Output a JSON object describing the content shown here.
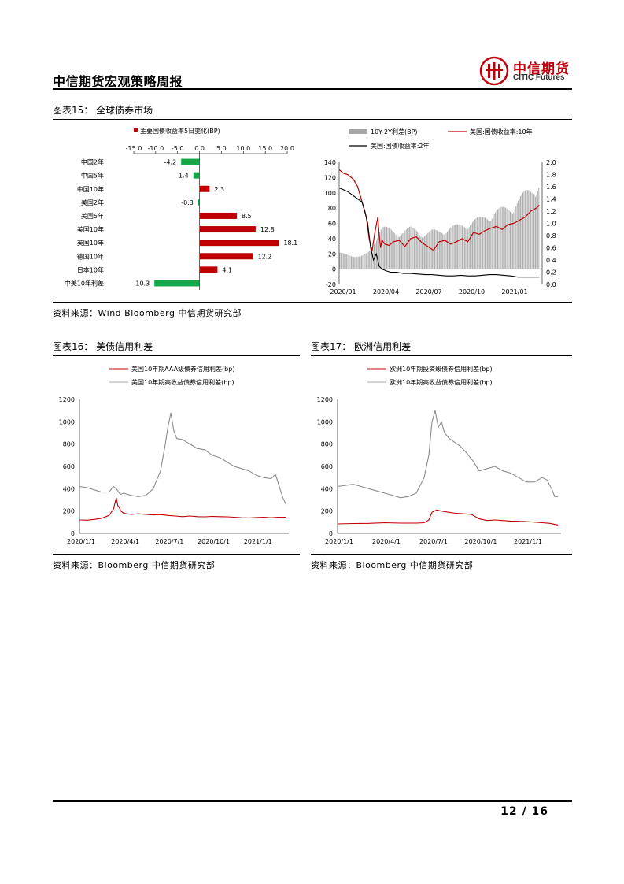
{
  "header": {
    "title": "中信期货宏观策略周报",
    "logo_cn": "中信期货",
    "logo_en": "CITIC Futures"
  },
  "fig15": {
    "caption": "图表15： 全球债券市场",
    "source": "资料来源：Wind Bloomberg 中信期货研究部"
  },
  "fig16": {
    "caption": "图表16： 美债信用利差",
    "source": "资料来源：Bloomberg 中信期货研究部"
  },
  "fig17": {
    "caption": "图表17： 欧洲信用利差",
    "source": "资料来源：Bloomberg 中信期货研究部"
  },
  "footer": {
    "page": "12 / 16"
  },
  "colors": {
    "red": "#c00000",
    "green": "#18a64a",
    "grey": "#a6a6a6",
    "black": "#000000"
  },
  "chart_data": [
    {
      "id": "bar",
      "type": "bar",
      "orientation": "horizontal",
      "legend": "主要国债收益率5日变化(BP)",
      "categories": [
        "中国2年",
        "中国5年",
        "中国10年",
        "美国2年",
        "美国5年",
        "美国10年",
        "英国10年",
        "德国10年",
        "日本10年",
        "中美10年利差"
      ],
      "values": [
        -4.2,
        -1.4,
        2.3,
        -0.3,
        8.5,
        12.8,
        18.1,
        12.2,
        4.1,
        -10.3
      ],
      "value_labels": [
        "-4.2",
        "-1.4",
        "2.3",
        "-0.3",
        "8.5",
        "12.8",
        "18.1",
        "12.2",
        "4.1",
        "-10.3"
      ],
      "xlim": [
        -15,
        20
      ],
      "xticks": [
        "-15.0",
        "-10.0",
        "-5.0",
        "0.0",
        "5.0",
        "10.0",
        "15.0",
        "20.0"
      ],
      "xtick_values": [
        -15,
        -10,
        -5,
        0,
        5,
        10,
        15,
        20
      ]
    },
    {
      "id": "yields",
      "type": "line",
      "legend": [
        "10Y-2Y利差(BP)",
        "美国:国债收益率:10年",
        "美国:国债收益率:2年"
      ],
      "xticks": [
        "2020/01",
        "2020/04",
        "2020/07",
        "2020/10",
        "2021/01"
      ],
      "xlim": [
        0,
        14.2
      ],
      "ylim_left": [
        -20,
        140
      ],
      "yticks_left": [
        "140",
        "120",
        "100",
        "80",
        "60",
        "40",
        "20",
        "0",
        "-20"
      ],
      "ytick_values_left": [
        140,
        120,
        100,
        80,
        60,
        40,
        20,
        0,
        -20
      ],
      "ylim_right": [
        0,
        2.0
      ],
      "yticks_right": [
        "2.0",
        "1.8",
        "1.6",
        "1.4",
        "1.2",
        "1.0",
        "0.8",
        "0.6",
        "0.4",
        "0.2",
        "0.0"
      ],
      "ytick_values_right": [
        2.0,
        1.8,
        1.6,
        1.4,
        1.2,
        1.0,
        0.8,
        0.6,
        0.4,
        0.2,
        0.0
      ],
      "series": [
        {
          "name": "10Y-2Y利差(BP)",
          "axis": "left",
          "kind": "column",
          "x": [
            0,
            0.5,
            1,
            1.5,
            2,
            2.3,
            2.6,
            3,
            3.5,
            4,
            4.5,
            5,
            5.5,
            6,
            6.5,
            7,
            7.5,
            8,
            8.5,
            9,
            9.5,
            10,
            10.5,
            11,
            11.5,
            12,
            12.5,
            13,
            13.5,
            14
          ],
          "y": [
            22,
            20,
            19,
            17,
            22,
            30,
            45,
            58,
            54,
            50,
            52,
            56,
            53,
            48,
            52,
            52,
            55,
            58,
            60,
            63,
            67,
            70,
            75,
            80,
            82,
            85,
            95,
            103,
            110,
            120
          ]
        },
        {
          "name": "美国:国债收益率:10年",
          "axis": "right",
          "kind": "line",
          "x": [
            0,
            0.3,
            0.6,
            1,
            1.3,
            1.6,
            1.9,
            2.1,
            2.3,
            2.5,
            2.7,
            2.8,
            2.9,
            3.0,
            3.2,
            3.5,
            3.8,
            4.2,
            4.6,
            5,
            5.4,
            5.8,
            6.2,
            6.6,
            7,
            7.4,
            7.8,
            8.2,
            8.6,
            9,
            9.4,
            9.8,
            10.2,
            10.6,
            11,
            11.4,
            11.8,
            12.2,
            12.6,
            13,
            13.4,
            13.8,
            14
          ],
          "y": [
            1.88,
            1.82,
            1.8,
            1.72,
            1.6,
            1.35,
            1.1,
            0.75,
            0.55,
            0.85,
            1.1,
            0.8,
            0.6,
            0.72,
            0.66,
            0.64,
            0.7,
            0.72,
            0.62,
            0.75,
            0.78,
            0.68,
            0.62,
            0.56,
            0.7,
            0.72,
            0.66,
            0.7,
            0.75,
            0.7,
            0.85,
            0.82,
            0.88,
            0.92,
            0.95,
            0.9,
            0.98,
            1.0,
            1.05,
            1.1,
            1.2,
            1.25,
            1.3
          ]
        },
        {
          "name": "美国:国债收益率:2年",
          "axis": "right",
          "kind": "line",
          "x": [
            0,
            0.3,
            0.6,
            1,
            1.3,
            1.6,
            1.8,
            2.0,
            2.2,
            2.4,
            2.6,
            2.8,
            3.0,
            3.3,
            3.6,
            4,
            4.5,
            5,
            5.5,
            6,
            6.5,
            7,
            7.5,
            8,
            8.5,
            9,
            9.5,
            10,
            10.5,
            11,
            11.5,
            12,
            12.5,
            13,
            13.5,
            14
          ],
          "y": [
            1.58,
            1.55,
            1.52,
            1.45,
            1.4,
            1.35,
            1.2,
            1.0,
            0.6,
            0.4,
            0.5,
            0.3,
            0.25,
            0.22,
            0.2,
            0.2,
            0.18,
            0.18,
            0.17,
            0.16,
            0.16,
            0.15,
            0.14,
            0.14,
            0.15,
            0.14,
            0.14,
            0.15,
            0.16,
            0.16,
            0.15,
            0.14,
            0.12,
            0.12,
            0.12,
            0.12
          ]
        }
      ]
    },
    {
      "id": "us_spread",
      "type": "line",
      "legend": [
        "美国10年期AAA级债券信用利差(bp)",
        "美国10年期高收益债券信用利差(bp)"
      ],
      "xticks": [
        "2020/1/1",
        "2020/4/1",
        "2020/7/1",
        "2020/10/1",
        "2021/1/1"
      ],
      "xlim": [
        0,
        14.2
      ],
      "ylim": [
        0,
        1200
      ],
      "yticks": [
        "1200",
        "1000",
        "800",
        "600",
        "400",
        "200",
        "0"
      ],
      "ytick_values": [
        1200,
        1000,
        800,
        600,
        400,
        200,
        0
      ],
      "series": [
        {
          "name": "美国10年期AAA级债券信用利差(bp)",
          "x": [
            0,
            0.5,
            1,
            1.5,
            2,
            2.3,
            2.5,
            2.6,
            2.7,
            2.8,
            3,
            3.5,
            4,
            4.5,
            5,
            5.5,
            6,
            6.5,
            7,
            7.5,
            8,
            8.5,
            9,
            9.5,
            10,
            10.5,
            11,
            11.5,
            12,
            12.5,
            13,
            13.5,
            14
          ],
          "y": [
            120,
            118,
            125,
            135,
            160,
            215,
            320,
            250,
            230,
            200,
            180,
            170,
            175,
            170,
            165,
            168,
            160,
            155,
            150,
            155,
            150,
            148,
            152,
            150,
            148,
            145,
            140,
            138,
            142,
            145,
            140,
            145,
            145
          ]
        },
        {
          "name": "美国10年期高收益债券信用利差(bp)",
          "x": [
            0,
            0.5,
            1,
            1.5,
            2,
            2.3,
            2.5,
            2.6,
            2.7,
            2.8,
            3,
            3.5,
            4,
            4.5,
            5,
            5.5,
            5.8,
            6.0,
            6.2,
            6.4,
            6.6,
            7,
            7.5,
            8,
            8.5,
            9,
            9.5,
            10,
            10.5,
            11,
            11.5,
            12,
            12.5,
            13,
            13.3,
            13.6,
            13.8,
            14
          ],
          "y": [
            420,
            410,
            390,
            370,
            370,
            420,
            400,
            380,
            360,
            350,
            360,
            340,
            330,
            340,
            400,
            560,
            780,
            950,
            1080,
            920,
            850,
            840,
            800,
            760,
            750,
            700,
            680,
            640,
            600,
            580,
            560,
            520,
            500,
            490,
            530,
            400,
            320,
            260
          ]
        }
      ]
    },
    {
      "id": "eu_spread",
      "type": "line",
      "legend": [
        "欧洲10年期投资级债券信用利差(bp)",
        "欧洲10年期高收益债券信用利差(bp)"
      ],
      "xticks": [
        "2020/1/1",
        "2020/4/1",
        "2020/7/1",
        "2020/10/1",
        "2021/1/1"
      ],
      "xlim": [
        0,
        14.2
      ],
      "ylim": [
        0,
        1200
      ],
      "yticks": [
        "1200",
        "1000",
        "800",
        "600",
        "400",
        "200",
        "0"
      ],
      "ytick_values": [
        1200,
        1000,
        800,
        600,
        400,
        200,
        0
      ],
      "series": [
        {
          "name": "欧洲10年期投资级债券信用利差(bp)",
          "x": [
            0,
            1,
            2,
            3,
            4,
            5,
            5.5,
            5.8,
            6,
            6.3,
            6.6,
            7,
            7.5,
            8,
            8.5,
            9,
            9.5,
            10,
            11,
            12,
            13,
            13.5,
            14
          ],
          "y": [
            85,
            88,
            90,
            95,
            92,
            92,
            95,
            120,
            190,
            210,
            200,
            190,
            180,
            175,
            170,
            130,
            115,
            120,
            110,
            105,
            95,
            90,
            75
          ]
        },
        {
          "name": "欧洲10年期高收益债券信用利差(bp)",
          "x": [
            0,
            0.5,
            1,
            1.5,
            2,
            2.5,
            3,
            3.5,
            4,
            4.5,
            5,
            5.5,
            5.8,
            6.0,
            6.2,
            6.4,
            6.6,
            6.8,
            7.1,
            7.4,
            7.8,
            8.2,
            8.6,
            9,
            9.5,
            10,
            10.5,
            11,
            11.5,
            12,
            12.5,
            13,
            13.3,
            13.6,
            13.8,
            14
          ],
          "y": [
            420,
            430,
            440,
            420,
            400,
            380,
            360,
            340,
            320,
            330,
            360,
            500,
            700,
            1000,
            1100,
            950,
            1000,
            900,
            850,
            820,
            780,
            720,
            650,
            560,
            580,
            600,
            560,
            540,
            500,
            460,
            460,
            500,
            480,
            400,
            330,
            330
          ]
        }
      ]
    }
  ]
}
